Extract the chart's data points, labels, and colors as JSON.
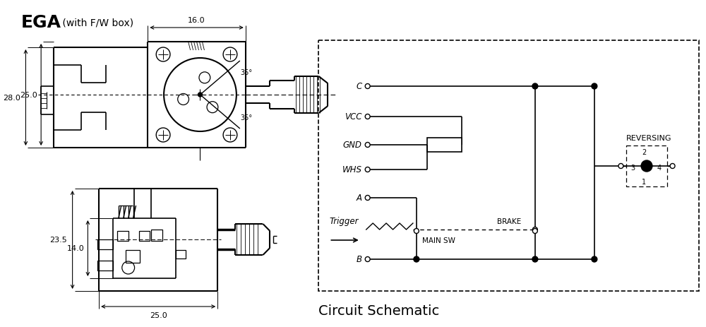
{
  "title_bold": "EGA",
  "title_normal": " (with F/W box)",
  "bg_color": "#ffffff",
  "line_color": "#000000",
  "circuit_schematic_label": "Circuit Schematic",
  "dim_16": "16.0",
  "dim_28": "28.0",
  "dim_25_side": "25.0",
  "dim_25_5": "23.5",
  "dim_14": "14.0",
  "dim_25_bottom": "25.0",
  "angle_35_top": "35°",
  "angle_35_bot": "35°",
  "label_trigger": "Trigger",
  "label_brake": "BRAKE",
  "label_main_sw": "MAIN SW",
  "label_reversing": "REVERSING"
}
